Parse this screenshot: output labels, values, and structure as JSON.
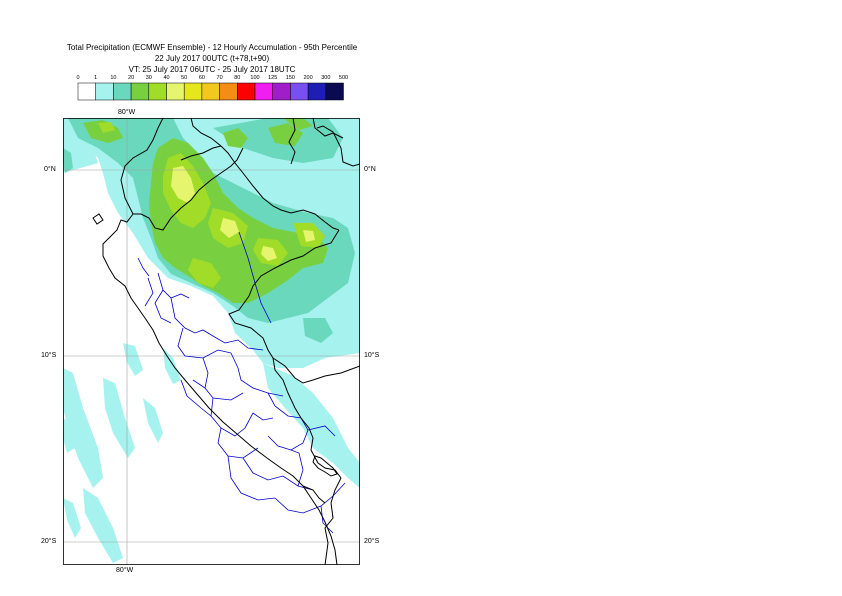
{
  "title": {
    "line1": "Total Precipitation (ECMWF Ensemble) - 12 Hourly Accumulation - 95th Percentile",
    "line2": "22 July 2017 00UTC (t+78,t+90)",
    "line3": "VT: 25 July 2017 06UTC - 25 July 2017 18UTC"
  },
  "legend": {
    "ticks": [
      "0",
      "1",
      "10",
      "20",
      "30",
      "40",
      "50",
      "60",
      "70",
      "80",
      "100",
      "125",
      "150",
      "200",
      "300",
      "500"
    ],
    "colors": [
      "#ffffff",
      "#a6f2ee",
      "#6ad8bc",
      "#78d040",
      "#a0dc28",
      "#e6f56e",
      "#e6e61e",
      "#f0c81e",
      "#f58c14",
      "#ff0000",
      "#f01ef0",
      "#a01ec8",
      "#7850f0",
      "#1e1eb4",
      "#0a0a50"
    ]
  },
  "axes": {
    "lon_top": "80°W",
    "lon_bottom": "80°W",
    "lat_left": [
      "0°N",
      "10°S",
      "20°S"
    ],
    "lat_right": [
      "0°N",
      "10°S",
      "20°S"
    ]
  },
  "colors": {
    "border": "#000000",
    "admin": "#0000c8",
    "grid": "#a0a0a0"
  }
}
